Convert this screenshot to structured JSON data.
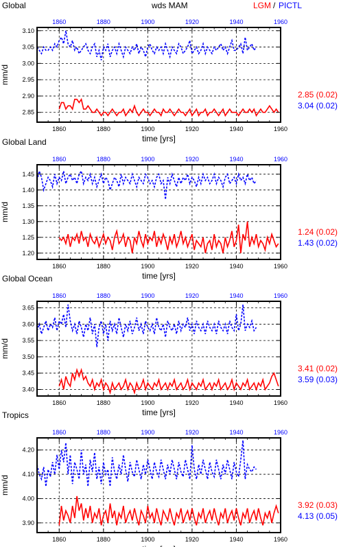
{
  "header": {
    "left_title": "Global",
    "center_title": "wds MAM",
    "legend_lgm": "LGM",
    "legend_sep": "/",
    "legend_pictl": "PICTL"
  },
  "colors": {
    "lgm": "#ff0000",
    "pictl": "#0000ff",
    "axis": "#000000",
    "grid": "#000000"
  },
  "x_ticks": [
    "1860",
    "1880",
    "1900",
    "1920",
    "1940",
    "1960"
  ],
  "chart_data": [
    {
      "type": "line",
      "title": "Global",
      "xlabel": "time [yrs]",
      "ylabel": "mm/d",
      "xlim": [
        1850,
        1960
      ],
      "ylim": [
        2.82,
        3.11
      ],
      "yticks": [
        "2.85",
        "2.90",
        "2.95",
        "3.00",
        "3.05",
        "3.10"
      ],
      "grid": true,
      "series": [
        {
          "name": "LGM",
          "mean_label": "2.85 (0.02)",
          "x_start": 1860,
          "values": [
            2.86,
            2.88,
            2.88,
            2.86,
            2.87,
            2.87,
            2.86,
            2.89,
            2.89,
            2.88,
            2.89,
            2.86,
            2.86,
            2.87,
            2.86,
            2.85,
            2.85,
            2.86,
            2.85,
            2.84,
            2.85,
            2.85,
            2.84,
            2.85,
            2.86,
            2.85,
            2.84,
            2.85,
            2.85,
            2.86,
            2.84,
            2.85,
            2.86,
            2.85,
            2.87,
            2.85,
            2.84,
            2.85,
            2.86,
            2.85,
            2.85,
            2.84,
            2.85,
            2.86,
            2.85,
            2.85,
            2.84,
            2.86,
            2.85,
            2.85,
            2.86,
            2.85,
            2.84,
            2.85,
            2.86,
            2.85,
            2.85,
            2.84,
            2.85,
            2.86,
            2.84,
            2.85,
            2.86,
            2.84,
            2.85,
            2.85,
            2.86,
            2.84,
            2.85,
            2.85,
            2.86,
            2.85,
            2.84,
            2.85,
            2.86,
            2.84,
            2.85,
            2.86,
            2.85,
            2.85,
            2.85,
            2.84,
            2.85,
            2.86,
            2.85,
            2.85,
            2.86,
            2.85,
            2.86,
            2.84,
            2.85,
            2.86,
            2.85,
            2.85,
            2.86,
            2.87,
            2.86,
            2.85,
            2.86,
            2.85
          ]
        },
        {
          "name": "PICTL",
          "mean_label": "3.04 (0.02)",
          "x_start": 1850,
          "values": [
            3.05,
            3.04,
            3.03,
            3.05,
            3.04,
            3.04,
            3.05,
            3.04,
            3.06,
            3.05,
            3.07,
            3.08,
            3.06,
            3.1,
            3.06,
            3.05,
            3.07,
            3.04,
            3.05,
            3.03,
            3.04,
            3.05,
            3.06,
            3.04,
            3.03,
            3.05,
            3.06,
            3.02,
            3.04,
            3.01,
            3.05,
            3.04,
            3.06,
            3.02,
            3.04,
            3.05,
            3.03,
            3.06,
            3.04,
            3.02,
            3.05,
            3.04,
            3.03,
            3.05,
            3.04,
            3.06,
            3.03,
            3.05,
            3.04,
            3.02,
            3.05,
            3.06,
            3.04,
            3.03,
            3.05,
            3.04,
            3.05,
            3.03,
            3.06,
            3.04,
            3.02,
            3.05,
            3.04,
            3.03,
            3.06,
            3.05,
            3.03,
            3.04,
            3.05,
            3.07,
            3.03,
            3.04,
            3.05,
            3.03,
            3.04,
            3.06,
            3.03,
            3.05,
            3.04,
            3.03,
            3.05,
            3.04,
            3.05,
            3.06,
            3.04,
            3.05,
            3.03,
            3.05,
            3.07,
            3.04,
            3.04,
            3.05,
            3.06,
            3.03,
            3.08,
            3.04,
            3.05,
            3.06,
            3.04,
            3.05
          ]
        }
      ]
    },
    {
      "type": "line",
      "title": "Global Land",
      "xlabel": "time [yrs]",
      "ylabel": "mm/d",
      "xlim": [
        1850,
        1960
      ],
      "ylim": [
        1.18,
        1.48
      ],
      "yticks": [
        "1.20",
        "1.25",
        "1.30",
        "1.35",
        "1.40",
        "1.45"
      ],
      "grid": true,
      "series": [
        {
          "name": "LGM",
          "mean_label": "1.24 (0.02)",
          "x_start": 1860,
          "values": [
            1.25,
            1.24,
            1.25,
            1.23,
            1.26,
            1.22,
            1.25,
            1.24,
            1.26,
            1.23,
            1.27,
            1.24,
            1.25,
            1.22,
            1.26,
            1.24,
            1.23,
            1.25,
            1.22,
            1.24,
            1.26,
            1.23,
            1.25,
            1.24,
            1.21,
            1.25,
            1.27,
            1.23,
            1.24,
            1.26,
            1.22,
            1.25,
            1.24,
            1.2,
            1.25,
            1.23,
            1.27,
            1.24,
            1.22,
            1.26,
            1.23,
            1.25,
            1.24,
            1.27,
            1.22,
            1.25,
            1.23,
            1.26,
            1.24,
            1.21,
            1.25,
            1.23,
            1.26,
            1.22,
            1.24,
            1.27,
            1.23,
            1.25,
            1.22,
            1.24,
            1.26,
            1.21,
            1.24,
            1.23,
            1.22,
            1.25,
            1.2,
            1.23,
            1.24,
            1.21,
            1.26,
            1.22,
            1.24,
            1.23,
            1.2,
            1.25,
            1.22,
            1.24,
            1.27,
            1.22,
            1.24,
            1.29,
            1.2,
            1.26,
            1.24,
            1.3,
            1.22,
            1.25,
            1.23,
            1.26,
            1.22,
            1.24,
            1.23,
            1.21,
            1.25,
            1.23,
            1.26,
            1.24,
            1.22,
            1.23
          ]
        },
        {
          "name": "PICTL",
          "mean_label": "1.43 (0.02)",
          "x_start": 1850,
          "values": [
            1.43,
            1.46,
            1.44,
            1.4,
            1.42,
            1.44,
            1.43,
            1.41,
            1.45,
            1.42,
            1.44,
            1.43,
            1.46,
            1.42,
            1.44,
            1.45,
            1.43,
            1.44,
            1.42,
            1.45,
            1.46,
            1.42,
            1.44,
            1.43,
            1.45,
            1.42,
            1.44,
            1.41,
            1.43,
            1.45,
            1.42,
            1.44,
            1.43,
            1.4,
            1.42,
            1.44,
            1.43,
            1.41,
            1.45,
            1.42,
            1.44,
            1.43,
            1.42,
            1.45,
            1.43,
            1.41,
            1.44,
            1.43,
            1.42,
            1.45,
            1.44,
            1.42,
            1.43,
            1.41,
            1.44,
            1.45,
            1.42,
            1.43,
            1.37,
            1.44,
            1.42,
            1.45,
            1.43,
            1.41,
            1.44,
            1.42,
            1.44,
            1.43,
            1.45,
            1.42,
            1.44,
            1.43,
            1.41,
            1.44,
            1.42,
            1.45,
            1.43,
            1.44,
            1.42,
            1.43,
            1.45,
            1.42,
            1.44,
            1.43,
            1.41,
            1.44,
            1.45,
            1.42,
            1.43,
            1.44,
            1.42,
            1.45,
            1.43,
            1.44,
            1.42,
            1.45,
            1.43,
            1.44,
            1.42,
            1.43
          ]
        }
      ]
    },
    {
      "type": "line",
      "title": "Global Ocean",
      "xlabel": "time [yrs]",
      "ylabel": "mm/d",
      "xlim": [
        1850,
        1960
      ],
      "ylim": [
        3.38,
        3.67
      ],
      "yticks": [
        "3.40",
        "3.45",
        "3.50",
        "3.55",
        "3.60",
        "3.65"
      ],
      "grid": true,
      "series": [
        {
          "name": "LGM",
          "mean_label": "3.41 (0.02)",
          "x_start": 1860,
          "values": [
            3.41,
            3.43,
            3.4,
            3.44,
            3.42,
            3.41,
            3.45,
            3.43,
            3.46,
            3.44,
            3.46,
            3.43,
            3.44,
            3.42,
            3.41,
            3.43,
            3.4,
            3.42,
            3.41,
            3.43,
            3.4,
            3.42,
            3.41,
            3.39,
            3.42,
            3.4,
            3.41,
            3.42,
            3.4,
            3.41,
            3.43,
            3.4,
            3.42,
            3.41,
            3.39,
            3.42,
            3.4,
            3.41,
            3.43,
            3.4,
            3.42,
            3.41,
            3.4,
            3.42,
            3.41,
            3.43,
            3.4,
            3.41,
            3.42,
            3.4,
            3.42,
            3.41,
            3.43,
            3.4,
            3.41,
            3.42,
            3.4,
            3.41,
            3.43,
            3.4,
            3.42,
            3.41,
            3.4,
            3.42,
            3.41,
            3.43,
            3.4,
            3.41,
            3.42,
            3.4,
            3.42,
            3.41,
            3.43,
            3.4,
            3.41,
            3.42,
            3.4,
            3.41,
            3.43,
            3.4,
            3.42,
            3.41,
            3.4,
            3.42,
            3.41,
            3.43,
            3.4,
            3.41,
            3.42,
            3.4,
            3.42,
            3.41,
            3.43,
            3.4,
            3.41,
            3.42,
            3.44,
            3.45,
            3.43,
            3.41
          ]
        },
        {
          "name": "PICTL",
          "mean_label": "3.59 (0.03)",
          "x_start": 1850,
          "values": [
            3.58,
            3.6,
            3.57,
            3.59,
            3.61,
            3.58,
            3.6,
            3.59,
            3.62,
            3.58,
            3.61,
            3.6,
            3.63,
            3.59,
            3.66,
            3.61,
            3.58,
            3.6,
            3.57,
            3.61,
            3.59,
            3.56,
            3.6,
            3.58,
            3.62,
            3.57,
            3.6,
            3.53,
            3.59,
            3.61,
            3.57,
            3.6,
            3.55,
            3.61,
            3.58,
            3.6,
            3.57,
            3.62,
            3.59,
            3.56,
            3.6,
            3.58,
            3.61,
            3.57,
            3.59,
            3.62,
            3.58,
            3.6,
            3.57,
            3.61,
            3.59,
            3.58,
            3.6,
            3.57,
            3.62,
            3.59,
            3.58,
            3.6,
            3.56,
            3.61,
            3.59,
            3.58,
            3.6,
            3.57,
            3.61,
            3.58,
            3.6,
            3.59,
            3.62,
            3.58,
            3.6,
            3.57,
            3.61,
            3.59,
            3.58,
            3.6,
            3.57,
            3.61,
            3.59,
            3.58,
            3.6,
            3.57,
            3.61,
            3.59,
            3.58,
            3.6,
            3.57,
            3.61,
            3.59,
            3.58,
            3.63,
            3.58,
            3.6,
            3.66,
            3.58,
            3.6,
            3.59,
            3.61,
            3.58,
            3.59
          ]
        }
      ]
    },
    {
      "type": "line",
      "title": "Tropics",
      "xlabel": "time [yrs]",
      "ylabel": "mm/d",
      "xlim": [
        1850,
        1960
      ],
      "ylim": [
        3.86,
        4.25
      ],
      "yticks": [
        "3.90",
        "4.00",
        "4.10",
        "4.20"
      ],
      "grid": true,
      "series": [
        {
          "name": "LGM",
          "mean_label": "3.92 (0.03)",
          "x_start": 1860,
          "values": [
            3.89,
            3.97,
            3.91,
            3.95,
            3.93,
            3.9,
            3.97,
            3.92,
            4.01,
            3.95,
            3.98,
            3.91,
            3.96,
            3.92,
            3.97,
            3.9,
            3.94,
            3.92,
            3.96,
            3.89,
            3.93,
            3.95,
            3.9,
            3.98,
            3.92,
            3.95,
            3.89,
            3.94,
            3.92,
            3.97,
            3.9,
            3.93,
            3.95,
            3.91,
            3.96,
            3.92,
            3.89,
            3.95,
            3.93,
            3.9,
            3.97,
            3.92,
            3.94,
            3.9,
            3.96,
            3.92,
            3.89,
            3.95,
            3.93,
            3.91,
            3.96,
            3.92,
            3.89,
            3.94,
            3.92,
            3.96,
            3.9,
            3.93,
            3.95,
            3.91,
            3.96,
            3.92,
            3.89,
            3.94,
            3.92,
            3.96,
            3.9,
            3.93,
            3.95,
            3.91,
            3.96,
            3.92,
            3.89,
            3.94,
            3.92,
            3.96,
            3.9,
            3.93,
            3.95,
            3.91,
            3.96,
            3.92,
            3.89,
            3.94,
            3.92,
            3.96,
            3.9,
            3.93,
            3.95,
            3.91,
            3.96,
            3.92,
            3.89,
            3.94,
            3.92,
            3.95,
            3.9,
            3.94,
            3.97,
            3.94
          ]
        },
        {
          "name": "PICTL",
          "mean_label": "4.13 (0.05)",
          "x_start": 1850,
          "values": [
            4.14,
            4.1,
            4.08,
            4.13,
            4.05,
            4.12,
            4.09,
            4.15,
            4.1,
            4.18,
            4.12,
            4.2,
            4.15,
            4.23,
            4.1,
            4.18,
            4.06,
            4.15,
            4.12,
            4.08,
            4.2,
            4.1,
            4.14,
            4.05,
            4.16,
            4.11,
            4.19,
            4.08,
            4.13,
            4.06,
            4.15,
            4.1,
            4.12,
            4.05,
            4.17,
            4.11,
            4.08,
            4.14,
            4.1,
            4.18,
            4.12,
            4.07,
            4.15,
            4.11,
            4.09,
            4.16,
            4.12,
            4.08,
            4.14,
            4.1,
            4.16,
            4.12,
            4.08,
            4.15,
            4.11,
            4.09,
            4.16,
            4.12,
            4.08,
            4.14,
            4.1,
            4.16,
            4.12,
            4.08,
            4.15,
            4.11,
            4.09,
            4.16,
            4.12,
            4.08,
            4.22,
            4.12,
            4.08,
            4.14,
            4.1,
            4.16,
            4.12,
            4.08,
            4.15,
            4.11,
            4.09,
            4.16,
            4.12,
            4.08,
            4.14,
            4.1,
            4.16,
            4.12,
            4.08,
            4.15,
            4.11,
            4.09,
            4.16,
            4.24,
            4.08,
            4.14,
            4.12,
            4.11,
            4.13,
            4.12
          ]
        }
      ]
    }
  ]
}
